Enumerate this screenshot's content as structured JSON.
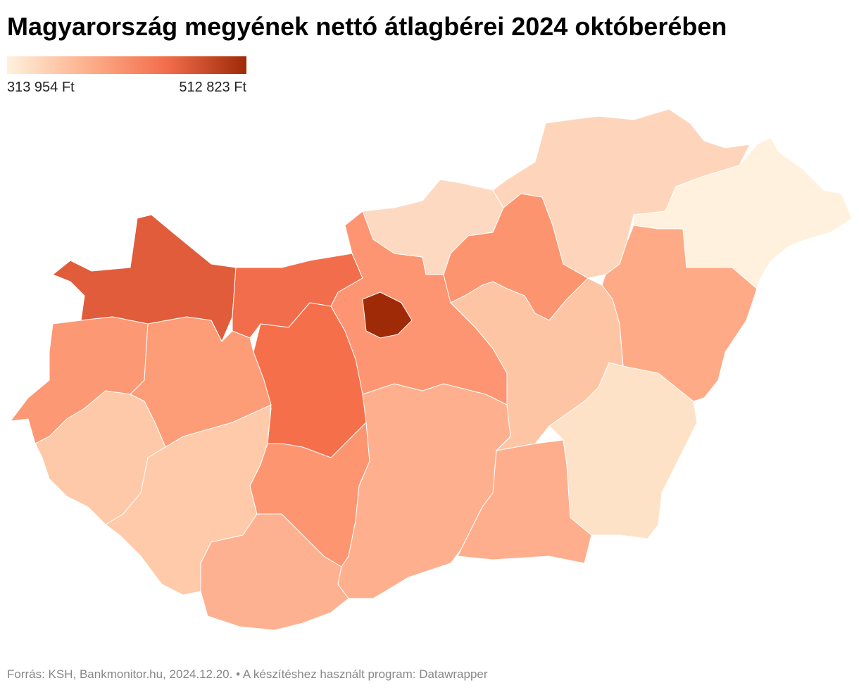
{
  "title": "Magyarország megyének nettó átlagbérei 2024 októberében",
  "legend": {
    "min": {
      "value": 313954,
      "label": "313 954 Ft"
    },
    "max": {
      "value": 512823,
      "label": "512 823 Ft"
    },
    "colors": [
      "#fff1dd",
      "#fdb08c",
      "#f26d4b",
      "#9e2a08"
    ]
  },
  "source": "Forrás: KSH, Bankmonitor.hu, 2024.12.20. • A készítéshez használt program: Datawrapper"
}
